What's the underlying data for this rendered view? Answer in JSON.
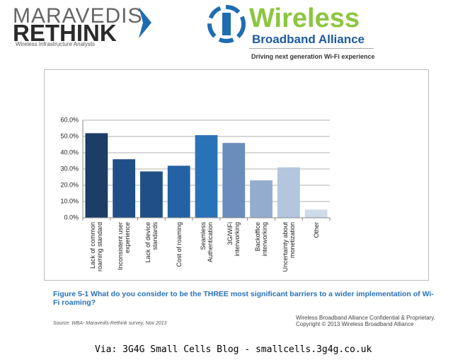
{
  "header": {
    "maravedis": "MARAVEDIS",
    "rethink": "RETHINK",
    "maravedis_tagline": "Wireless Infrastructure Analysts",
    "wba_title": "Wireless",
    "wba_subtitle": "Broadband Alliance",
    "wba_tagline": "Driving next generation Wi-Fi experience"
  },
  "chart_data": {
    "type": "bar",
    "categories": [
      "Lack of common roaming standard",
      "Inconsistent user experience",
      "Lack of device standards",
      "Cost of roaming",
      "Seamless Authentication",
      "3G/WiFi interworking",
      "Backoffice interworking",
      "Uncertainty about monetization",
      "Other"
    ],
    "values": [
      52,
      36,
      28.5,
      32,
      50.8,
      46,
      23,
      31,
      5
    ],
    "colors": [
      "#1b3d66",
      "#1f4f86",
      "#1f4f86",
      "#2462a4",
      "#2a72b8",
      "#6a8dbd",
      "#94adcf",
      "#b3c6de",
      "#cfdbeb"
    ],
    "ylim": [
      0,
      60
    ],
    "yticks": [
      {
        "value": 0,
        "label": "0.0%"
      },
      {
        "value": 10,
        "label": "10.0%"
      },
      {
        "value": 20,
        "label": "20.0%"
      },
      {
        "value": 30,
        "label": "30.0%"
      },
      {
        "value": 40,
        "label": "40.0%"
      },
      {
        "value": 50,
        "label": "50.0%"
      },
      {
        "value": 60,
        "label": "60.0%"
      }
    ],
    "grid": true
  },
  "caption": "Figure 5-1 What do you consider to be the THREE most significant barriers to a wider implementation of Wi-Fi roaming?",
  "source": "Source: WBA- Maravedis-Rethink survey, Nov 2013",
  "confidential": "Wireless Broadband Alliance Confidential & Proprietary.",
  "copyright": "Copyright © 2013 Wireless Broadband Alliance",
  "footer": "Via: 3G4G Small Cells Blog - smallcells.3g4g.co.uk"
}
